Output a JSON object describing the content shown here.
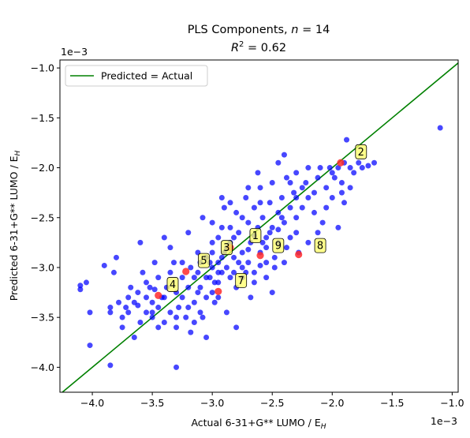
{
  "chart_data": {
    "type": "scatter",
    "title_line1": "PLS Components, n = 14",
    "title_line1_prefix": "PLS Components, ",
    "title_line1_var": "n",
    "title_line1_suffix": " = 14",
    "title_line2_var": "R",
    "title_line2_sup": "2",
    "title_line2_suffix": " = 0.62",
    "xlabel": "Actual 6-31+G** LUMO / E",
    "xlabel_sub": "H",
    "ylabel": "Predicted 6-31+G** LUMO / E",
    "ylabel_sub": "H",
    "x_offset_label": "1e−3",
    "y_offset_label": "1e−3",
    "xlim": [
      -4.27,
      -0.95
    ],
    "ylim": [
      -4.25,
      -0.92
    ],
    "xticks": [
      -4.0,
      -3.5,
      -3.0,
      -2.5,
      -2.0,
      -1.5,
      -1.0
    ],
    "xtick_labels": [
      "−4.0",
      "−3.5",
      "−3.0",
      "−2.5",
      "−2.0",
      "−1.5",
      "−1.0"
    ],
    "yticks": [
      -4.0,
      -3.5,
      -3.0,
      -2.5,
      -2.0,
      -1.5,
      -1.0
    ],
    "ytick_labels": [
      "−4.0",
      "−3.5",
      "−3.0",
      "−2.5",
      "−2.0",
      "−1.5",
      "−1.0"
    ],
    "grid": false,
    "legend_position": "top-left",
    "legend_label": "Predicted = Actual",
    "identity_line": {
      "name": "Predicted = Actual",
      "color": "#008000"
    },
    "point_color": "#0000ff",
    "highlight_color": "#ff2a2a",
    "annotation_color": "#ffff66",
    "points": [
      [
        -4.1,
        -3.18
      ],
      [
        -4.1,
        -3.22
      ],
      [
        -4.05,
        -3.15
      ],
      [
        -4.02,
        -3.45
      ],
      [
        -4.02,
        -3.78
      ],
      [
        -3.9,
        -2.98
      ],
      [
        -3.85,
        -3.45
      ],
      [
        -3.85,
        -3.4
      ],
      [
        -3.82,
        -3.05
      ],
      [
        -3.8,
        -2.9
      ],
      [
        -3.78,
        -3.35
      ],
      [
        -3.75,
        -3.5
      ],
      [
        -3.72,
        -3.4
      ],
      [
        -3.7,
        -3.3
      ],
      [
        -3.68,
        -3.2
      ],
      [
        -3.65,
        -3.35
      ],
      [
        -3.62,
        -3.25
      ],
      [
        -3.6,
        -3.55
      ],
      [
        -3.58,
        -3.05
      ],
      [
        -3.55,
        -3.3
      ],
      [
        -3.55,
        -3.45
      ],
      [
        -3.52,
        -3.2
      ],
      [
        -3.5,
        -3.35
      ],
      [
        -3.5,
        -3.5
      ],
      [
        -3.48,
        -2.95
      ],
      [
        -3.45,
        -3.1
      ],
      [
        -3.45,
        -3.4
      ],
      [
        -3.42,
        -3.3
      ],
      [
        -3.4,
        -2.7
      ],
      [
        -3.4,
        -3.55
      ],
      [
        -3.38,
        -3.2
      ],
      [
        -3.35,
        -3.05
      ],
      [
        -3.35,
        -3.45
      ],
      [
        -3.32,
        -2.95
      ],
      [
        -3.3,
        -3.25
      ],
      [
        -3.3,
        -3.6
      ],
      [
        -3.28,
        -3.4
      ],
      [
        -3.25,
        -3.1
      ],
      [
        -3.25,
        -3.3
      ],
      [
        -3.22,
        -3.5
      ],
      [
        -3.2,
        -2.65
      ],
      [
        -3.2,
        -3.2
      ],
      [
        -3.18,
        -3.0
      ],
      [
        -3.15,
        -3.35
      ],
      [
        -3.12,
        -2.85
      ],
      [
        -3.12,
        -3.05
      ],
      [
        -3.1,
        -3.2
      ],
      [
        -3.1,
        -3.45
      ],
      [
        -3.08,
        -2.5
      ],
      [
        -3.05,
        -2.9
      ],
      [
        -3.05,
        -3.3
      ],
      [
        -3.02,
        -3.1
      ],
      [
        -3.0,
        -2.55
      ],
      [
        -3.0,
        -2.85
      ],
      [
        -3.0,
        -3.0
      ],
      [
        -2.98,
        -3.15
      ],
      [
        -2.95,
        -2.7
      ],
      [
        -2.95,
        -2.95
      ],
      [
        -2.92,
        -3.05
      ],
      [
        -2.92,
        -2.6
      ],
      [
        -2.9,
        -2.4
      ],
      [
        -2.9,
        -2.85
      ],
      [
        -2.88,
        -3.0
      ],
      [
        -2.85,
        -2.75
      ],
      [
        -2.85,
        -3.1
      ],
      [
        -2.82,
        -2.9
      ],
      [
        -2.8,
        -2.45
      ],
      [
        -2.8,
        -3.2
      ],
      [
        -2.78,
        -2.65
      ],
      [
        -2.75,
        -2.85
      ],
      [
        -2.75,
        -3.0
      ],
      [
        -2.72,
        -2.3
      ],
      [
        -2.7,
        -2.55
      ],
      [
        -2.7,
        -2.95
      ],
      [
        -2.68,
        -2.75
      ],
      [
        -2.65,
        -2.4
      ],
      [
        -2.65,
        -3.05
      ],
      [
        -2.62,
        -2.6
      ],
      [
        -2.6,
        -2.2
      ],
      [
        -2.6,
        -2.85
      ],
      [
        -2.58,
        -2.5
      ],
      [
        -2.55,
        -2.7
      ],
      [
        -2.55,
        -2.95
      ],
      [
        -2.52,
        -2.35
      ],
      [
        -2.5,
        -2.6
      ],
      [
        -2.5,
        -2.15
      ],
      [
        -2.48,
        -2.9
      ],
      [
        -2.45,
        -2.45
      ],
      [
        -2.45,
        -2.75
      ],
      [
        -2.42,
        -2.3
      ],
      [
        -2.4,
        -1.87
      ],
      [
        -2.4,
        -2.55
      ],
      [
        -2.38,
        -2.1
      ],
      [
        -2.35,
        -2.4
      ],
      [
        -2.35,
        -2.7
      ],
      [
        -2.32,
        -2.25
      ],
      [
        -2.3,
        -2.05
      ],
      [
        -2.3,
        -2.5
      ],
      [
        -2.28,
        -2.85
      ],
      [
        -2.25,
        -2.2
      ],
      [
        -2.2,
        -2.0
      ],
      [
        -2.2,
        -2.3
      ],
      [
        -2.15,
        -2.45
      ],
      [
        -2.12,
        -2.1
      ],
      [
        -2.1,
        -2.0
      ],
      [
        -2.08,
        -2.55
      ],
      [
        -2.05,
        -2.2
      ],
      [
        -2.02,
        -2.0
      ],
      [
        -2.0,
        -2.05
      ],
      [
        -1.98,
        -2.1
      ],
      [
        -1.95,
        -2.0
      ],
      [
        -1.92,
        -2.25
      ],
      [
        -1.9,
        -1.95
      ],
      [
        -1.9,
        -2.35
      ],
      [
        -1.88,
        -1.72
      ],
      [
        -1.85,
        -2.0
      ],
      [
        -1.82,
        -2.05
      ],
      [
        -1.78,
        -1.95
      ],
      [
        -1.75,
        -2.0
      ],
      [
        -1.7,
        -1.98
      ],
      [
        -1.65,
        -1.95
      ],
      [
        -1.1,
        -1.6
      ],
      [
        -3.3,
        -4.0
      ],
      [
        -3.85,
        -3.98
      ],
      [
        -2.8,
        -3.6
      ],
      [
        -2.95,
        -3.3
      ],
      [
        -3.05,
        -3.7
      ],
      [
        -3.15,
        -3.55
      ],
      [
        -3.45,
        -3.6
      ],
      [
        -2.5,
        -3.25
      ],
      [
        -2.65,
        -3.15
      ],
      [
        -2.85,
        -2.6
      ],
      [
        -3.0,
        -2.75
      ],
      [
        -2.92,
        -2.9
      ],
      [
        -2.78,
        -2.95
      ],
      [
        -2.7,
        -2.82
      ],
      [
        -3.1,
        -2.95
      ],
      [
        -3.2,
        -3.4
      ],
      [
        -2.6,
        -2.98
      ],
      [
        -2.75,
        -3.1
      ],
      [
        -2.95,
        -3.05
      ],
      [
        -3.05,
        -3.1
      ],
      [
        -2.88,
        -2.8
      ],
      [
        -2.82,
        -2.7
      ],
      [
        -2.55,
        -2.8
      ],
      [
        -2.45,
        -2.62
      ],
      [
        -2.3,
        -2.65
      ],
      [
        -2.4,
        -2.95
      ],
      [
        -2.2,
        -2.75
      ],
      [
        -2.12,
        -2.65
      ],
      [
        -1.95,
        -2.6
      ],
      [
        -1.85,
        -2.2
      ],
      [
        -2.05,
        -2.4
      ],
      [
        -3.55,
        -3.15
      ],
      [
        -3.6,
        -2.75
      ],
      [
        -3.35,
        -2.8
      ],
      [
        -3.25,
        -2.95
      ],
      [
        -3.12,
        -3.25
      ],
      [
        -2.98,
        -3.35
      ],
      [
        -2.92,
        -2.3
      ],
      [
        -2.7,
        -2.2
      ],
      [
        -2.62,
        -2.05
      ],
      [
        -2.45,
        -1.95
      ],
      [
        -2.55,
        -3.1
      ],
      [
        -2.48,
        -3.0
      ],
      [
        -2.38,
        -2.8
      ],
      [
        -3.75,
        -3.6
      ],
      [
        -3.65,
        -3.7
      ],
      [
        -3.4,
        -3.3
      ],
      [
        -3.48,
        -3.22
      ],
      [
        -3.0,
        -3.25
      ],
      [
        -2.88,
        -3.45
      ],
      [
        -2.68,
        -3.3
      ],
      [
        -3.15,
        -3.1
      ],
      [
        -2.35,
        -2.15
      ],
      [
        -2.25,
        -2.4
      ],
      [
        -2.15,
        -2.25
      ],
      [
        -2.0,
        -2.3
      ],
      [
        -1.92,
        -2.15
      ],
      [
        -2.6,
        -2.35
      ],
      [
        -2.75,
        -2.5
      ],
      [
        -2.85,
        -2.35
      ],
      [
        -3.08,
        -3.5
      ],
      [
        -3.18,
        -3.65
      ],
      [
        -3.3,
        -3.5
      ],
      [
        -3.5,
        -3.45
      ],
      [
        -3.62,
        -3.38
      ],
      [
        -3.7,
        -3.45
      ],
      [
        -2.95,
        -3.15
      ],
      [
        -3.02,
        -2.95
      ],
      [
        -2.82,
        -3.05
      ],
      [
        -2.72,
        -3.05
      ],
      [
        -2.65,
        -2.68
      ],
      [
        -2.58,
        -2.75
      ],
      [
        -2.52,
        -2.65
      ],
      [
        -2.42,
        -2.5
      ],
      [
        -2.3,
        -2.3
      ],
      [
        -2.22,
        -2.15
      ]
    ],
    "highlighted_points": [
      [
        -3.45,
        -3.28
      ],
      [
        -3.22,
        -3.04
      ],
      [
        -2.95,
        -3.24
      ],
      [
        -2.85,
        -2.8
      ],
      [
        -2.6,
        -2.88
      ],
      [
        -2.28,
        -2.87
      ],
      [
        -1.93,
        -1.95
      ]
    ],
    "annotations": [
      {
        "label": "1",
        "x": -2.64,
        "y": -2.68
      },
      {
        "label": "2",
        "x": -1.76,
        "y": -1.84
      },
      {
        "label": "3",
        "x": -2.88,
        "y": -2.8
      },
      {
        "label": "4",
        "x": -3.33,
        "y": -3.17
      },
      {
        "label": "5",
        "x": -3.07,
        "y": -2.93
      },
      {
        "label": "7",
        "x": -2.76,
        "y": -3.13
      },
      {
        "label": "8",
        "x": -2.1,
        "y": -2.78
      },
      {
        "label": "9",
        "x": -2.45,
        "y": -2.78
      }
    ]
  }
}
